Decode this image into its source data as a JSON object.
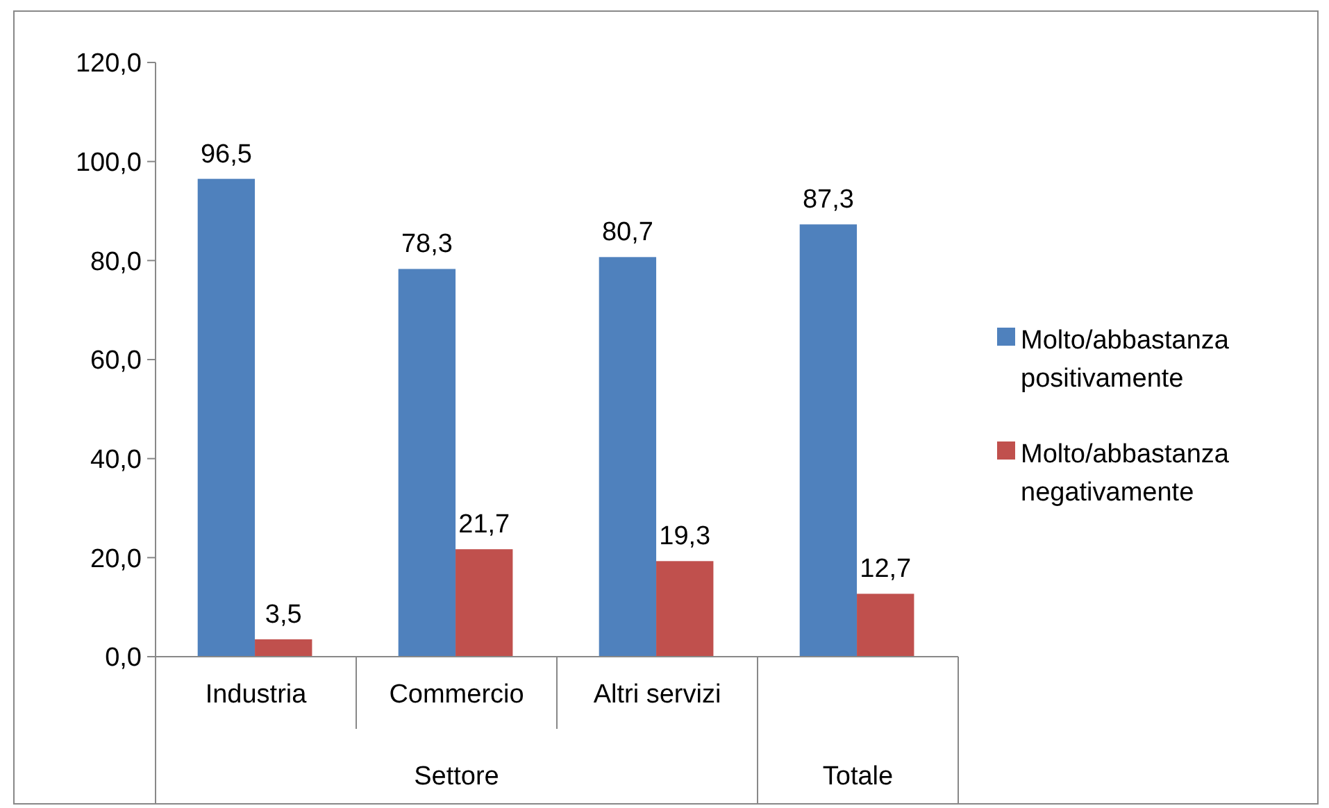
{
  "chart_data": {
    "type": "bar",
    "categories": [
      "Industria",
      "Commercio",
      "Altri servizi",
      null
    ],
    "annotations": [
      "Settore",
      "Totale"
    ],
    "series": [
      {
        "name": "Molto/abbastanza positivamente",
        "color": "#4f81bd",
        "values": [
          96.5,
          78.3,
          80.7,
          87.3
        ],
        "value_labels": [
          "96,5",
          "78,3",
          "80,7",
          "87,3"
        ]
      },
      {
        "name": "Molto/abbastanza negativamente",
        "color": "#c0504d",
        "values": [
          3.5,
          21.7,
          19.3,
          12.7
        ],
        "value_labels": [
          "3,5",
          "21,7",
          "19,3",
          "12,7"
        ]
      }
    ],
    "ylim": [
      0,
      120
    ],
    "yticks": [
      {
        "value": 0,
        "label": "0,0"
      },
      {
        "value": 20,
        "label": "20,0"
      },
      {
        "value": 40,
        "label": "40,0"
      },
      {
        "value": 60,
        "label": "60,0"
      },
      {
        "value": 80,
        "label": "80,0"
      },
      {
        "value": 100,
        "label": "100,0"
      },
      {
        "value": 120,
        "label": "120,0"
      }
    ],
    "grid": false,
    "legend": "right"
  }
}
